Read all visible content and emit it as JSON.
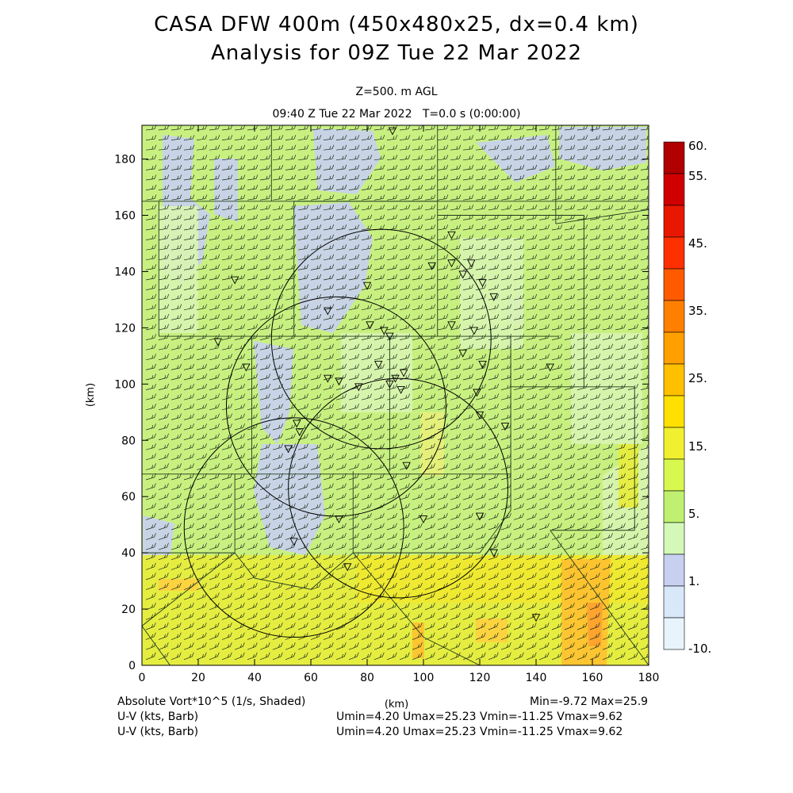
{
  "titles": {
    "line1": "CASA DFW 400m (450x480x25, dx=0.4 km)",
    "line2": "Analysis for 09Z Tue 22 Mar 2022",
    "level": "Z=500. m AGL",
    "time": "09:40 Z Tue 22 Mar 2022   T=0.0 s (0:00:00)"
  },
  "axes": {
    "xlabel": "(km)",
    "ylabel": "(km)",
    "xlim": [
      0,
      180
    ],
    "ylim": [
      0,
      192
    ],
    "x_ticks": [
      "0",
      "20",
      "40",
      "60",
      "80",
      "100",
      "120",
      "140",
      "160",
      "180"
    ],
    "y_ticks": [
      "0",
      "20",
      "40",
      "60",
      "80",
      "100",
      "120",
      "140",
      "160",
      "180"
    ]
  },
  "footer": {
    "field1": "Absolute Vort*10^5 (1/s, Shaded)",
    "minmax": "Min=-9.72 Max=25.9",
    "field2": "U-V (kts, Barb)",
    "uv2": "Umin=4.20 Umax=25.23 Vmin=-11.25 Vmax=9.62",
    "field3": "U-V (kts, Barb)",
    "uv3": "Umin=4.20 Umax=25.23 Vmin=-11.25 Vmax=9.62"
  },
  "colorbar": {
    "labels": [
      "60.",
      "55.",
      "45.",
      "35.",
      "25.",
      "15.",
      "5.",
      "1.",
      "-10."
    ],
    "colors": [
      "#b00000",
      "#d00000",
      "#e81800",
      "#ff3000",
      "#ff5a00",
      "#ff8000",
      "#ffa000",
      "#ffc000",
      "#ffe000",
      "#f0f030",
      "#d8f850",
      "#c0f070",
      "#d4f8b8",
      "#c8d0f0",
      "#d8e8f8",
      "#e8f4fc"
    ]
  },
  "radars": [
    {
      "cx": 85,
      "cy": 116,
      "r": 39
    },
    {
      "cx": 69,
      "cy": 92,
      "r": 39
    },
    {
      "cx": 91,
      "cy": 63,
      "r": 39
    },
    {
      "cx": 54,
      "cy": 49,
      "r": 39
    }
  ],
  "stations": [
    [
      89,
      190
    ],
    [
      33,
      137
    ],
    [
      27,
      115
    ],
    [
      37,
      106
    ],
    [
      66,
      126
    ],
    [
      80,
      135
    ],
    [
      88,
      117
    ],
    [
      81,
      121
    ],
    [
      86,
      119
    ],
    [
      84,
      107
    ],
    [
      77,
      99
    ],
    [
      66,
      102
    ],
    [
      70,
      101
    ],
    [
      88,
      100
    ],
    [
      90,
      102
    ],
    [
      93,
      104
    ],
    [
      92,
      98
    ],
    [
      110,
      143
    ],
    [
      117,
      143
    ],
    [
      114,
      139
    ],
    [
      121,
      136
    ],
    [
      125,
      131
    ],
    [
      110,
      121
    ],
    [
      118,
      119
    ],
    [
      121,
      107
    ],
    [
      114,
      111
    ],
    [
      103,
      142
    ],
    [
      110,
      153
    ],
    [
      145,
      106
    ],
    [
      119,
      97
    ],
    [
      120,
      89
    ],
    [
      129,
      85
    ],
    [
      55,
      86
    ],
    [
      56,
      83
    ],
    [
      52,
      77
    ],
    [
      94,
      71
    ],
    [
      70,
      52
    ],
    [
      100,
      52
    ],
    [
      120,
      53
    ],
    [
      54,
      44
    ],
    [
      73,
      35
    ],
    [
      125,
      40
    ],
    [
      140,
      17
    ]
  ],
  "county_lines": [
    [
      [
        0,
        165
      ],
      [
        195,
        165
      ]
    ],
    [
      [
        46,
        192
      ],
      [
        46,
        165
      ]
    ],
    [
      [
        105,
        192
      ],
      [
        105,
        165
      ]
    ],
    [
      [
        147,
        192
      ],
      [
        147,
        157
      ]
    ],
    [
      [
        147,
        157
      ],
      [
        180,
        162
      ]
    ],
    [
      [
        6,
        165
      ],
      [
        6,
        117
      ]
    ],
    [
      [
        6,
        117
      ],
      [
        148,
        117
      ]
    ],
    [
      [
        54,
        165
      ],
      [
        54,
        117
      ]
    ],
    [
      [
        54,
        165
      ],
      [
        105,
        165
      ]
    ],
    [
      [
        105,
        165
      ],
      [
        105,
        160
      ]
    ],
    [
      [
        105,
        160
      ],
      [
        157,
        160
      ]
    ],
    [
      [
        157,
        160
      ],
      [
        157,
        117
      ]
    ],
    [
      [
        105,
        160
      ],
      [
        105,
        117
      ]
    ],
    [
      [
        157,
        117
      ],
      [
        157,
        99
      ]
    ],
    [
      [
        157,
        99
      ],
      [
        175,
        99
      ]
    ],
    [
      [
        175,
        99
      ],
      [
        175,
        48
      ]
    ],
    [
      [
        175,
        48
      ],
      [
        145,
        48
      ]
    ],
    [
      [
        131,
        117
      ],
      [
        131,
        55
      ]
    ],
    [
      [
        131,
        99
      ],
      [
        157,
        99
      ]
    ],
    [
      [
        0,
        117
      ],
      [
        0,
        68
      ]
    ],
    [
      [
        39,
        117
      ],
      [
        39,
        68
      ]
    ],
    [
      [
        88,
        117
      ],
      [
        88,
        69
      ]
    ],
    [
      [
        0,
        68
      ],
      [
        131,
        68
      ]
    ],
    [
      [
        33,
        68
      ],
      [
        33,
        40
      ]
    ],
    [
      [
        75,
        69
      ],
      [
        75,
        40
      ]
    ],
    [
      [
        0,
        40
      ],
      [
        33,
        40
      ]
    ],
    [
      [
        33,
        40
      ],
      [
        40,
        31
      ]
    ],
    [
      [
        40,
        31
      ],
      [
        60,
        27
      ]
    ],
    [
      [
        60,
        27
      ],
      [
        75,
        40
      ]
    ],
    [
      [
        75,
        40
      ],
      [
        120,
        40
      ]
    ],
    [
      [
        120,
        40
      ],
      [
        131,
        55
      ]
    ],
    [
      [
        0,
        14
      ],
      [
        33,
        40
      ]
    ],
    [
      [
        75,
        40
      ],
      [
        100,
        10
      ]
    ],
    [
      [
        100,
        10
      ],
      [
        120,
        0
      ]
    ],
    [
      [
        145,
        48
      ],
      [
        180,
        0
      ]
    ],
    [
      [
        10,
        0
      ],
      [
        0,
        14
      ]
    ]
  ]
}
